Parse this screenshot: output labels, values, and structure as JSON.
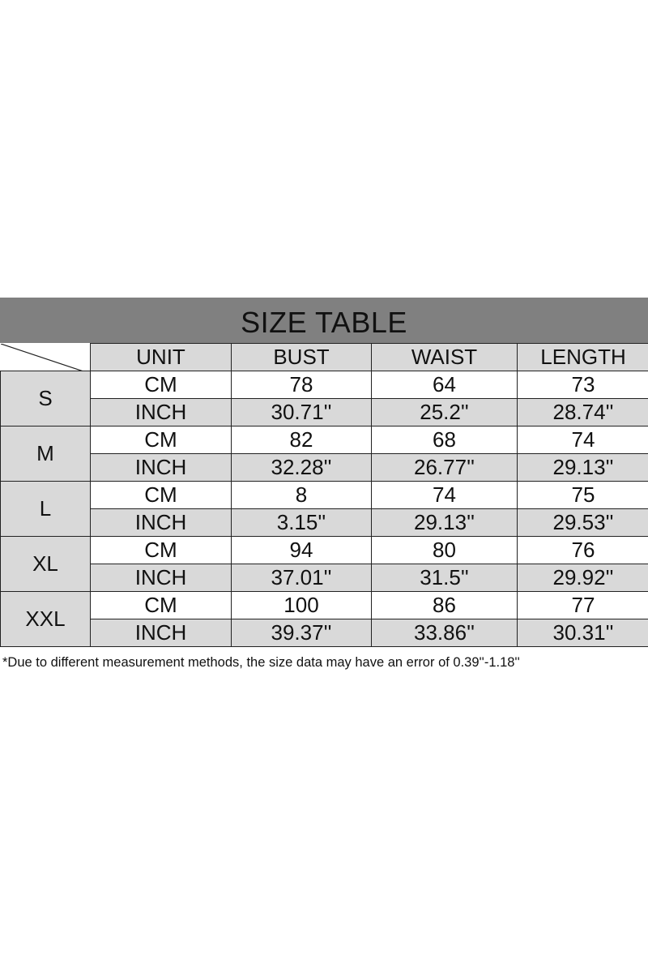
{
  "title": "SIZE TABLE",
  "headers": [
    "UNIT",
    "BUST",
    "WAIST",
    "LENGTH"
  ],
  "colors": {
    "title_bar": "#808080",
    "shaded_cell": "#d9d9d9"
  },
  "rows": [
    {
      "size": "S",
      "cm": [
        "CM",
        "78",
        "64",
        "73"
      ],
      "inch": [
        "INCH",
        "30.71''",
        "25.2''",
        "28.74''"
      ]
    },
    {
      "size": "M",
      "cm": [
        "CM",
        "82",
        "68",
        "74"
      ],
      "inch": [
        "INCH",
        "32.28''",
        "26.77''",
        "29.13''"
      ]
    },
    {
      "size": "L",
      "cm": [
        "CM",
        "8",
        "74",
        "75"
      ],
      "inch": [
        "INCH",
        "3.15''",
        "29.13''",
        "29.53''"
      ]
    },
    {
      "size": "XL",
      "cm": [
        "CM",
        "94",
        "80",
        "76"
      ],
      "inch": [
        "INCH",
        "37.01''",
        "31.5''",
        "29.92''"
      ]
    },
    {
      "size": "XXL",
      "cm": [
        "CM",
        "100",
        "86",
        "77"
      ],
      "inch": [
        "INCH",
        "39.37''",
        "33.86''",
        "30.31''"
      ]
    }
  ],
  "note": "*Due to different measurement methods, the size data may have an error of 0.39''-1.18''"
}
